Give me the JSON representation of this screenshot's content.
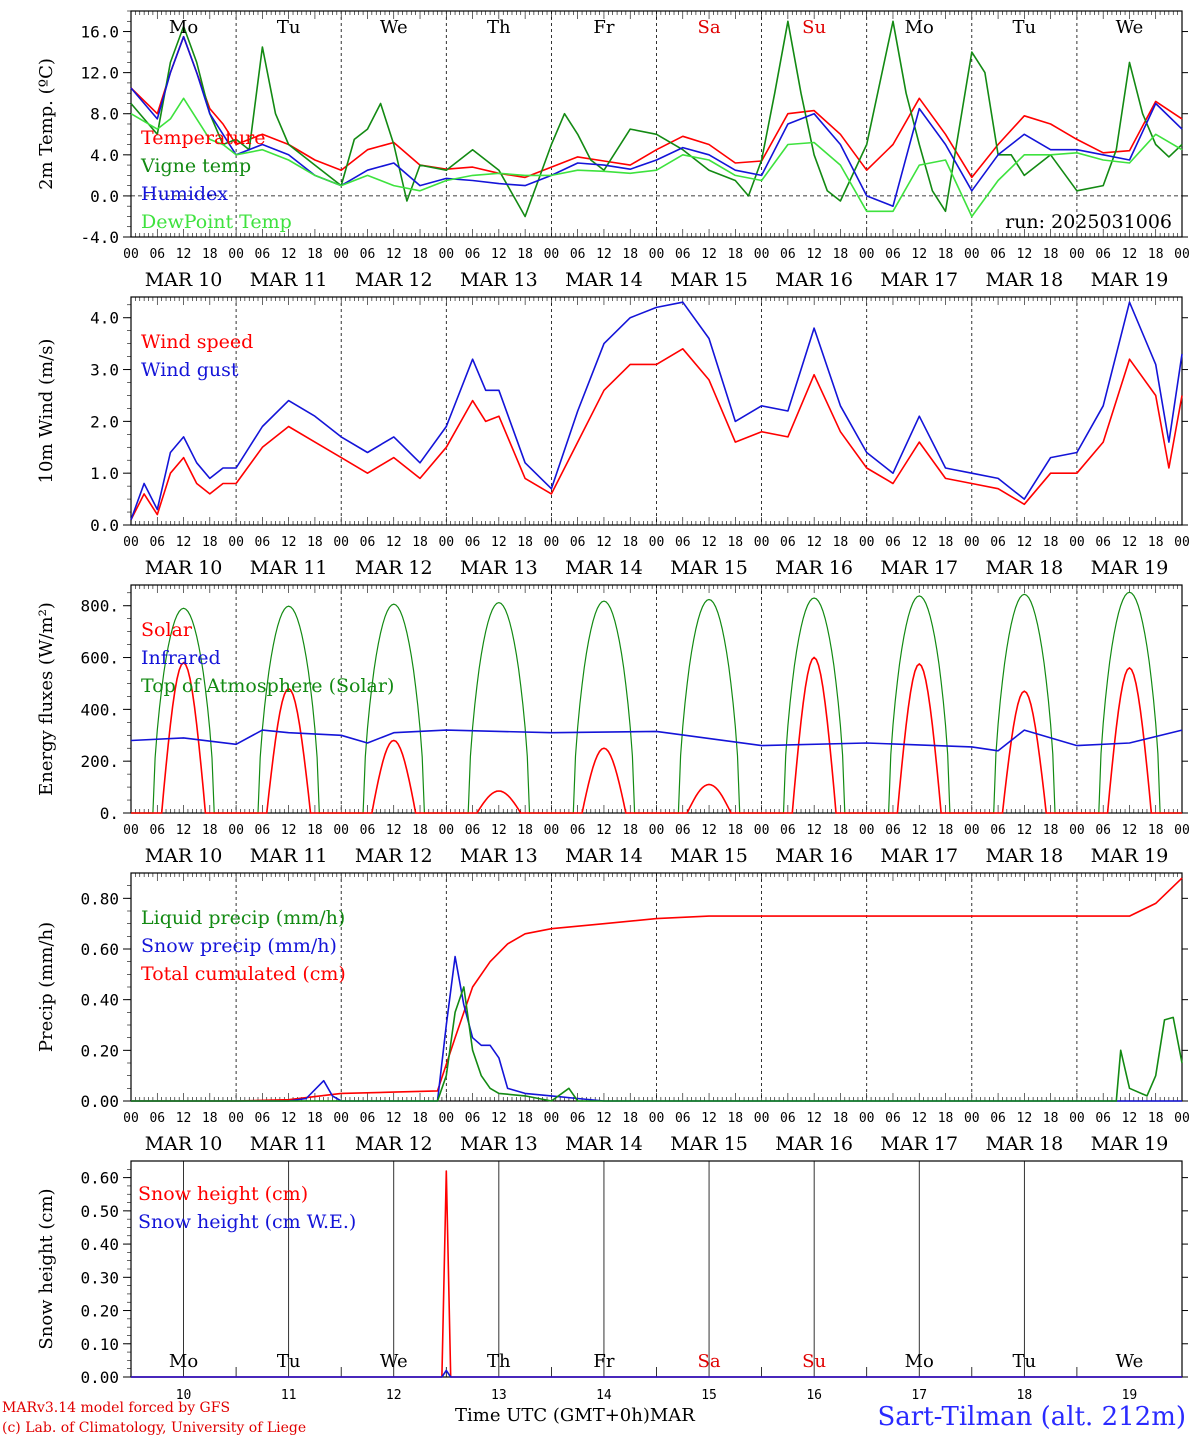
{
  "chart_data": [
    {
      "type": "line",
      "ylabel": "2m Temp. (ºC)",
      "ylim": [
        -4,
        18
      ],
      "yticks": [
        "-4.0",
        "0.0",
        "4.0",
        "8.0",
        "12.0",
        "16.0"
      ],
      "zero_dashed_line": true,
      "annotation": "run: 2025031006",
      "legend": [
        "Temperature",
        "Vigne temp",
        "Humidex",
        "DewPoint Temp"
      ],
      "series": [
        {
          "name": "Temperature",
          "color": "#ff0000",
          "x": [
            0,
            6,
            9,
            12,
            15,
            18,
            21,
            24,
            30,
            36,
            42,
            48,
            54,
            60,
            66,
            72,
            78,
            84,
            90,
            96,
            102,
            108,
            114,
            120,
            126,
            132,
            138,
            144,
            150,
            156,
            162,
            168,
            174,
            180,
            186,
            192,
            198,
            204,
            210,
            216,
            222,
            228,
            234,
            240
          ],
          "y": [
            10.5,
            8,
            12,
            15.5,
            12,
            8.5,
            7,
            5,
            6,
            5,
            3.5,
            2.5,
            4.5,
            5.2,
            3,
            2.6,
            2.8,
            2.2,
            1.8,
            2.8,
            3.8,
            3.4,
            3,
            4.5,
            5.8,
            5,
            3.2,
            3.4,
            8,
            8.3,
            6,
            2.5,
            5,
            9.5,
            6,
            1.8,
            5,
            7.8,
            7,
            5.5,
            4.2,
            4.4,
            9.2,
            7.5
          ]
        },
        {
          "name": "Vigne temp",
          "color": "#138a13",
          "x": [
            0,
            6,
            9,
            12,
            15,
            18,
            21,
            24,
            27,
            30,
            33,
            36,
            42,
            48,
            51,
            54,
            57,
            60,
            63,
            66,
            72,
            78,
            84,
            90,
            96,
            99,
            102,
            105,
            108,
            114,
            120,
            126,
            132,
            138,
            141,
            144,
            147,
            150,
            153,
            156,
            159,
            162,
            168,
            174,
            177,
            180,
            183,
            186,
            192,
            195,
            198,
            201,
            204,
            210,
            216,
            222,
            225,
            228,
            231,
            234,
            237,
            240
          ],
          "y": [
            9,
            6,
            13,
            16.5,
            13,
            8,
            5,
            5.5,
            4.5,
            14.5,
            8,
            5,
            3,
            1,
            5.5,
            6.5,
            9,
            5,
            -0.5,
            3,
            2.5,
            4.5,
            2.5,
            -2,
            5,
            8,
            6,
            3.5,
            2.5,
            6.5,
            6,
            4.5,
            2.5,
            1.5,
            0,
            3.5,
            10,
            17,
            10,
            4,
            0.5,
            -0.5,
            5,
            17,
            10,
            5,
            0.5,
            -1.5,
            14,
            12,
            4,
            4,
            2,
            4,
            0.5,
            1,
            4.5,
            13,
            8,
            5,
            3.8,
            5
          ]
        },
        {
          "name": "Humidex",
          "color": "#1414d8",
          "x": [
            0,
            6,
            9,
            12,
            15,
            18,
            21,
            24,
            30,
            36,
            42,
            48,
            54,
            60,
            66,
            72,
            78,
            84,
            90,
            96,
            102,
            108,
            114,
            120,
            126,
            132,
            138,
            144,
            150,
            156,
            162,
            168,
            174,
            180,
            186,
            192,
            198,
            204,
            210,
            216,
            222,
            228,
            234,
            240
          ],
          "y": [
            10.5,
            7.5,
            12,
            15.5,
            12,
            8,
            6,
            4,
            5,
            4,
            2,
            1,
            2.5,
            3.2,
            1,
            1.7,
            1.5,
            1.2,
            1,
            2,
            3.2,
            3,
            2.6,
            3.5,
            4.7,
            4,
            2.5,
            2,
            7,
            8,
            5,
            0,
            -1,
            8.5,
            5,
            0.5,
            4,
            6,
            4.5,
            4.5,
            4,
            3.5,
            9,
            6.5
          ]
        },
        {
          "name": "DewPoint Temp",
          "color": "#3ee23e",
          "x": [
            0,
            6,
            9,
            12,
            15,
            18,
            21,
            24,
            30,
            36,
            42,
            48,
            54,
            60,
            66,
            72,
            78,
            84,
            90,
            96,
            102,
            108,
            114,
            120,
            126,
            132,
            138,
            144,
            150,
            156,
            162,
            168,
            174,
            180,
            186,
            192,
            198,
            204,
            210,
            216,
            222,
            228,
            234,
            240
          ],
          "y": [
            8,
            6.5,
            7.5,
            9.5,
            7.5,
            5.5,
            5,
            4,
            4.5,
            3.5,
            2,
            1,
            2,
            1,
            0.5,
            1.5,
            2,
            2.2,
            2,
            2,
            2.5,
            2.4,
            2.2,
            2.5,
            4,
            3.5,
            2,
            1.5,
            5,
            5.2,
            3,
            -1.5,
            -1.5,
            3,
            3.5,
            -2,
            1.5,
            4,
            4,
            4.2,
            3.5,
            3.2,
            6,
            4.5
          ]
        }
      ]
    },
    {
      "type": "line",
      "ylabel": "10m Wind (m/s)",
      "ylim": [
        0,
        4.4
      ],
      "yticks": [
        "0.0",
        "1.0",
        "2.0",
        "3.0",
        "4.0"
      ],
      "legend": [
        "Wind speed",
        "Wind gust"
      ],
      "series": [
        {
          "name": "Wind speed",
          "color": "#ff0000",
          "x": [
            0,
            3,
            6,
            9,
            12,
            15,
            18,
            21,
            24,
            30,
            36,
            42,
            48,
            54,
            60,
            66,
            72,
            78,
            81,
            84,
            90,
            96,
            102,
            108,
            114,
            120,
            126,
            132,
            138,
            144,
            150,
            156,
            162,
            168,
            174,
            180,
            186,
            192,
            198,
            204,
            210,
            216,
            222,
            228,
            234,
            237,
            240
          ],
          "y": [
            0.1,
            0.6,
            0.2,
            1,
            1.3,
            0.8,
            0.6,
            0.8,
            0.8,
            1.5,
            1.9,
            1.6,
            1.3,
            1.0,
            1.3,
            0.9,
            1.5,
            2.4,
            2.0,
            2.1,
            0.9,
            0.6,
            1.6,
            2.6,
            3.1,
            3.1,
            3.4,
            2.8,
            1.6,
            1.8,
            1.7,
            2.9,
            1.8,
            1.1,
            0.8,
            1.6,
            0.9,
            0.8,
            0.7,
            0.4,
            1.0,
            1.0,
            1.6,
            3.2,
            2.5,
            1.1,
            2.5
          ]
        },
        {
          "name": "Wind gust",
          "color": "#1414d8",
          "x": [
            0,
            3,
            6,
            9,
            12,
            15,
            18,
            21,
            24,
            30,
            36,
            42,
            48,
            54,
            60,
            66,
            72,
            78,
            81,
            84,
            90,
            96,
            102,
            108,
            114,
            120,
            126,
            132,
            138,
            144,
            150,
            156,
            162,
            168,
            174,
            180,
            186,
            192,
            198,
            204,
            210,
            216,
            222,
            228,
            234,
            237,
            240
          ],
          "y": [
            0.1,
            0.8,
            0.3,
            1.4,
            1.7,
            1.2,
            0.9,
            1.1,
            1.1,
            1.9,
            2.4,
            2.1,
            1.7,
            1.4,
            1.7,
            1.2,
            1.9,
            3.2,
            2.6,
            2.6,
            1.2,
            0.7,
            2.2,
            3.5,
            4.0,
            4.2,
            4.3,
            3.6,
            2.0,
            2.3,
            2.2,
            3.8,
            2.3,
            1.4,
            1.0,
            2.1,
            1.1,
            1.0,
            0.9,
            0.5,
            1.3,
            1.4,
            2.3,
            4.3,
            3.1,
            1.6,
            3.3
          ]
        }
      ]
    },
    {
      "type": "line",
      "ylabel": "Energy fluxes (W/m²)",
      "ylim": [
        0,
        880
      ],
      "yticks": [
        "0.",
        "200.",
        "400.",
        "600.",
        "800."
      ],
      "legend": [
        "Solar",
        "Infrared",
        "Top of Atmosphere (Solar)"
      ],
      "toa_peaks": [
        790,
        798,
        806,
        812,
        818,
        824,
        830,
        838,
        844,
        852
      ],
      "solar_peaks": [
        580,
        480,
        280,
        85,
        250,
        110,
        600,
        575,
        470,
        560
      ],
      "series": [
        {
          "name": "Infrared",
          "color": "#1414d8",
          "x": [
            0,
            12,
            24,
            30,
            36,
            48,
            54,
            60,
            72,
            96,
            120,
            144,
            168,
            192,
            198,
            204,
            216,
            228,
            240
          ],
          "y": [
            280,
            290,
            265,
            320,
            310,
            300,
            270,
            310,
            320,
            310,
            315,
            260,
            270,
            255,
            240,
            320,
            260,
            270,
            320
          ]
        }
      ]
    },
    {
      "type": "line",
      "ylabel": "Precip (mm/h)",
      "ylim": [
        0,
        0.9
      ],
      "yticks": [
        "0.00",
        "0.20",
        "0.40",
        "0.60",
        "0.80"
      ],
      "legend": [
        "Liquid precip (mm/h)",
        "Snow precip (mm/h)",
        "Total cumulated (cm)"
      ],
      "series": [
        {
          "name": "Total cumulated (cm)",
          "color": "#ff0000",
          "x": [
            0,
            24,
            36,
            48,
            60,
            70,
            74,
            78,
            82,
            86,
            90,
            96,
            108,
            120,
            132,
            144,
            168,
            192,
            216,
            228,
            234,
            240
          ],
          "y": [
            0,
            0,
            0.005,
            0.03,
            0.035,
            0.04,
            0.25,
            0.45,
            0.55,
            0.62,
            0.66,
            0.68,
            0.7,
            0.72,
            0.73,
            0.73,
            0.73,
            0.73,
            0.73,
            0.73,
            0.78,
            0.88
          ]
        },
        {
          "name": "Snow precip (mm/h)",
          "color": "#1414d8",
          "x": [
            0,
            36,
            40,
            44,
            46,
            48,
            70,
            72,
            74,
            76,
            78,
            80,
            82,
            84,
            86,
            90,
            96,
            102,
            108,
            120,
            240
          ],
          "y": [
            0,
            0,
            0.01,
            0.08,
            0.02,
            0,
            0,
            0.3,
            0.57,
            0.38,
            0.25,
            0.22,
            0.22,
            0.17,
            0.05,
            0.03,
            0.02,
            0.01,
            0,
            0,
            0
          ]
        },
        {
          "name": "Liquid precip (mm/h)",
          "color": "#138a13",
          "x": [
            0,
            70,
            72,
            74,
            76,
            78,
            80,
            82,
            84,
            90,
            96,
            100,
            102,
            108,
            216,
            225,
            226,
            228,
            232,
            234,
            236,
            238,
            240
          ],
          "y": [
            0,
            0,
            0.1,
            0.35,
            0.45,
            0.2,
            0.1,
            0.05,
            0.03,
            0.02,
            0,
            0.05,
            0,
            0,
            0,
            0,
            0.2,
            0.05,
            0.02,
            0.1,
            0.32,
            0.33,
            0.15
          ]
        }
      ]
    },
    {
      "type": "line",
      "ylabel": "Snow height (cm)",
      "ylim": [
        0,
        0.65
      ],
      "yticks": [
        "0.00",
        "0.10",
        "0.20",
        "0.30",
        "0.40",
        "0.50",
        "0.60"
      ],
      "legend": [
        "Snow height (cm)",
        "Snow height (cm W.E.)"
      ],
      "series": [
        {
          "name": "Snow height (cm)",
          "color": "#ff0000",
          "x": [
            0,
            71,
            72,
            73,
            240
          ],
          "y": [
            0,
            0,
            0.62,
            0,
            0
          ]
        },
        {
          "name": "Snow height (cm W.E.)",
          "color": "#1414d8",
          "x": [
            0,
            71,
            72,
            73,
            240
          ],
          "y": [
            0,
            0,
            0.02,
            0,
            0
          ]
        }
      ]
    }
  ],
  "x_axis": {
    "hour_ticks": [
      "00",
      "06",
      "12",
      "18"
    ],
    "end_tick": "00",
    "date_labels": [
      "MAR 10",
      "MAR 11",
      "MAR 12",
      "MAR 13",
      "MAR 14",
      "MAR 15",
      "MAR 16",
      "MAR 17",
      "MAR 18",
      "MAR 19"
    ],
    "weekdays": [
      "Mo",
      "Tu",
      "We",
      "Th",
      "Fr",
      "Sa",
      "Su",
      "Mo",
      "Tu",
      "We"
    ],
    "weekday_colors": [
      "#000000",
      "#000000",
      "#000000",
      "#000000",
      "#000000",
      "#e00000",
      "#e00000",
      "#000000",
      "#000000",
      "#000000"
    ],
    "bottom_days": [
      "10",
      "11",
      "12",
      "13",
      "14",
      "15",
      "16",
      "17",
      "18",
      "19"
    ],
    "month": "MAR"
  },
  "footer": {
    "credit_line1": "MARv3.14 model forced by GFS",
    "credit_line2": "(c) Lab. of Climatology, University of Liege",
    "xaxis_title": "Time UTC (GMT+0h)",
    "station": "Sart-Tilman (alt. 212m)"
  }
}
